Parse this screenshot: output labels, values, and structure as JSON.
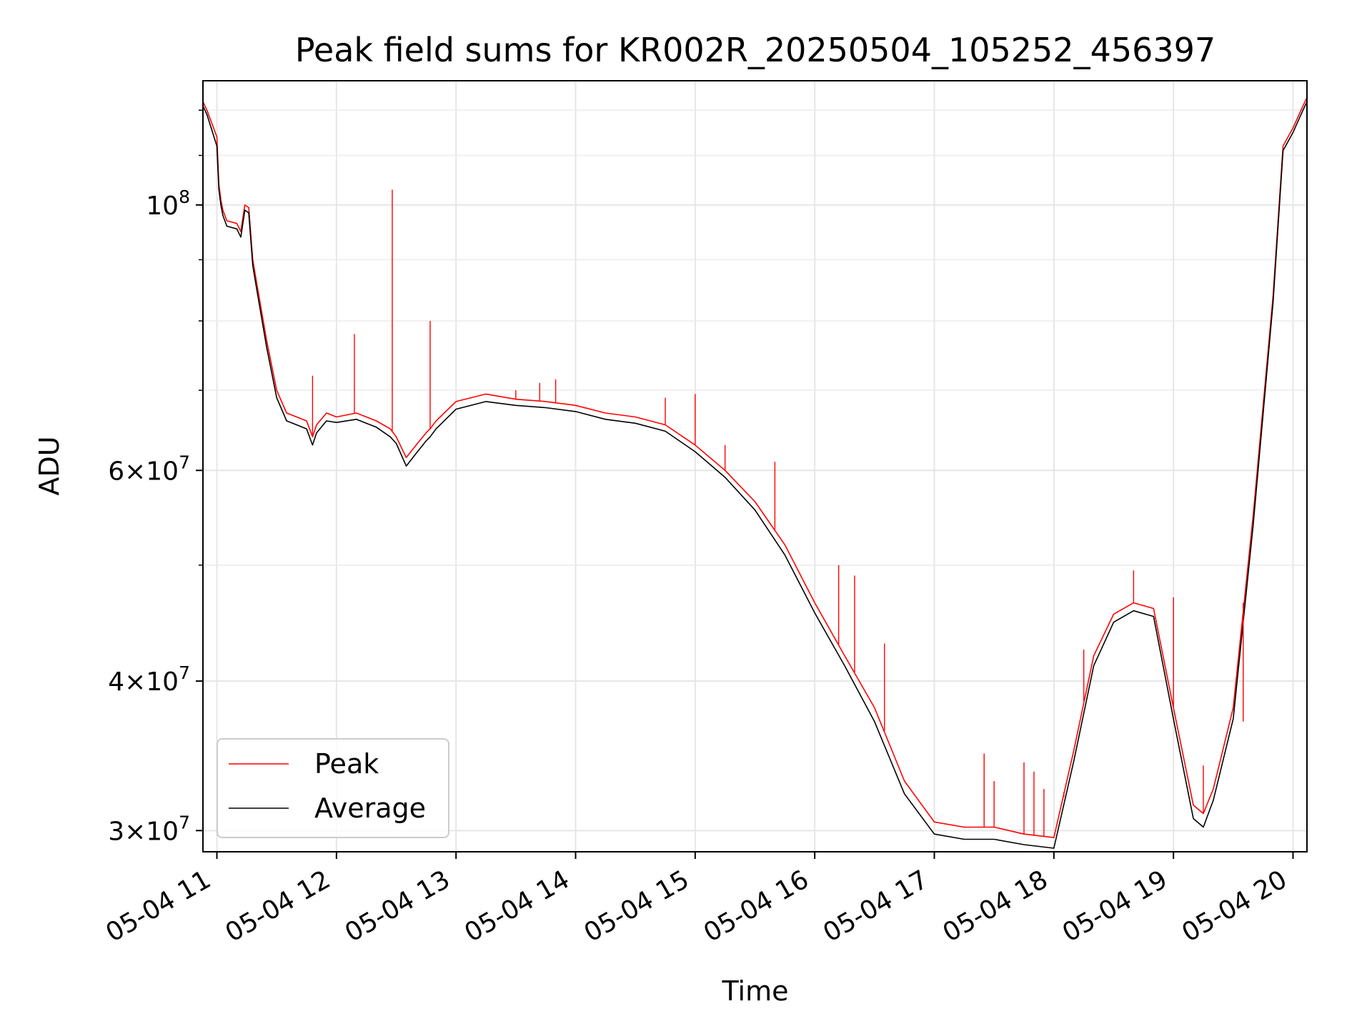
{
  "chart_data": {
    "type": "line",
    "title": "Peak field sums for KR002R_20250504_105252_456397",
    "xlabel": "Time",
    "ylabel": "ADU",
    "xlim": [
      "05-04 10:53",
      "05-04 20:07"
    ],
    "ylim": [
      28800000,
      127000000
    ],
    "yscale": "log",
    "grid": true,
    "legend": "lower-left",
    "x_ticks": [
      "05-04 11",
      "05-04 12",
      "05-04 13",
      "05-04 14",
      "05-04 15",
      "05-04 16",
      "05-04 17",
      "05-04 18",
      "05-04 19",
      "05-04 20"
    ],
    "y_ticks": [
      {
        "value": 100000000,
        "base": "10",
        "exp": "8"
      },
      {
        "value": 60000000,
        "mant": "6",
        "base": "10",
        "exp": "7"
      },
      {
        "value": 40000000,
        "mant": "4",
        "base": "10",
        "exp": "7"
      },
      {
        "value": 30000000,
        "mant": "3",
        "base": "10",
        "exp": "7"
      }
    ],
    "series": [
      {
        "name": "Peak",
        "color": "#ff0000",
        "x": [
          "10:53",
          "10:55",
          "11:00",
          "11:01",
          "11:02",
          "11:03",
          "11:05",
          "11:10",
          "11:12",
          "11:14",
          "11:16",
          "11:18",
          "11:20",
          "11:25",
          "11:30",
          "11:35",
          "11:40",
          "11:45",
          "11:48",
          "11:50",
          "11:55",
          "12:00",
          "12:10",
          "12:20",
          "12:27",
          "12:30",
          "12:35",
          "12:40",
          "12:45",
          "12:47",
          "12:50",
          "13:00",
          "13:15",
          "13:30",
          "13:45",
          "14:00",
          "14:15",
          "14:30",
          "14:45",
          "15:00",
          "15:15",
          "15:30",
          "15:45",
          "16:00",
          "16:15",
          "16:30",
          "16:45",
          "17:00",
          "17:15",
          "17:30",
          "17:45",
          "18:00",
          "18:10",
          "18:20",
          "18:30",
          "18:40",
          "18:50",
          "19:00",
          "19:10",
          "19:15",
          "19:20",
          "19:30",
          "19:40",
          "19:50",
          "19:55",
          "20:00",
          "20:05",
          "20:07"
        ],
        "y": [
          122000000,
          120000000,
          114000000,
          104000000,
          101000000,
          99000000,
          97000000,
          96500000,
          95000000,
          100000000,
          99500000,
          90000000,
          86000000,
          77000000,
          70000000,
          67000000,
          66500000,
          66000000,
          64000000,
          65500000,
          67000000,
          66500000,
          67000000,
          66000000,
          65000000,
          64000000,
          61500000,
          63000000,
          64500000,
          65000000,
          66000000,
          68500000,
          69500000,
          68800000,
          68500000,
          68000000,
          67000000,
          66500000,
          65500000,
          63000000,
          60000000,
          56500000,
          52000000,
          46500000,
          42000000,
          38000000,
          33000000,
          30500000,
          30200000,
          30200000,
          29800000,
          29600000,
          35000000,
          42000000,
          45500000,
          46500000,
          46000000,
          38000000,
          31500000,
          31000000,
          32500000,
          38000000,
          55000000,
          84000000,
          112000000,
          116000000,
          121000000,
          123000000
        ]
      },
      {
        "name": "Average",
        "color": "#000000",
        "x": [
          "10:53",
          "10:55",
          "11:00",
          "11:01",
          "11:02",
          "11:03",
          "11:05",
          "11:10",
          "11:12",
          "11:14",
          "11:16",
          "11:18",
          "11:20",
          "11:25",
          "11:30",
          "11:35",
          "11:40",
          "11:45",
          "11:48",
          "11:50",
          "11:55",
          "12:00",
          "12:10",
          "12:20",
          "12:27",
          "12:30",
          "12:35",
          "12:40",
          "12:45",
          "12:47",
          "12:50",
          "13:00",
          "13:15",
          "13:30",
          "13:45",
          "14:00",
          "14:15",
          "14:30",
          "14:45",
          "15:00",
          "15:15",
          "15:30",
          "15:45",
          "16:00",
          "16:15",
          "16:30",
          "16:45",
          "17:00",
          "17:15",
          "17:30",
          "17:45",
          "18:00",
          "18:10",
          "18:20",
          "18:30",
          "18:40",
          "18:50",
          "19:00",
          "19:10",
          "19:15",
          "19:20",
          "19:30",
          "19:40",
          "19:50",
          "19:55",
          "20:00",
          "20:05",
          "20:07"
        ],
        "y": [
          121000000,
          119000000,
          112000000,
          103000000,
          100000000,
          98000000,
          96000000,
          95500000,
          94000000,
          99000000,
          98500000,
          89000000,
          85000000,
          76000000,
          69000000,
          66000000,
          65500000,
          65000000,
          63000000,
          64500000,
          66000000,
          65800000,
          66200000,
          65200000,
          64000000,
          63200000,
          60500000,
          62000000,
          63500000,
          64000000,
          65000000,
          67500000,
          68500000,
          68000000,
          67700000,
          67200000,
          66200000,
          65700000,
          64700000,
          62200000,
          59200000,
          55600000,
          51000000,
          45600000,
          41200000,
          37000000,
          32200000,
          29800000,
          29500000,
          29500000,
          29200000,
          29000000,
          34300000,
          41200000,
          44800000,
          45800000,
          45300000,
          37200000,
          30700000,
          30200000,
          31800000,
          37200000,
          54000000,
          83000000,
          111000000,
          115000000,
          120000000,
          122000000
        ]
      }
    ],
    "spikes": {
      "name": "Peak",
      "x": [
        "11:48",
        "12:09",
        "12:28",
        "12:47",
        "13:30",
        "13:42",
        "13:50",
        "14:45",
        "15:00",
        "15:15",
        "15:40",
        "16:12",
        "16:20",
        "16:35",
        "17:25",
        "17:30",
        "17:45",
        "17:50",
        "17:55",
        "18:05",
        "18:15",
        "18:40",
        "19:00",
        "19:15",
        "19:35"
      ],
      "y": [
        72000000,
        78000000,
        103000000,
        80000000,
        70000000,
        71000000,
        71500000,
        69000000,
        69500000,
        63000000,
        61000000,
        50000000,
        49000000,
        43000000,
        34800000,
        33000000,
        34200000,
        33600000,
        32500000,
        32000000,
        42500000,
        49500000,
        47000000,
        34000000,
        37000000
      ]
    }
  }
}
